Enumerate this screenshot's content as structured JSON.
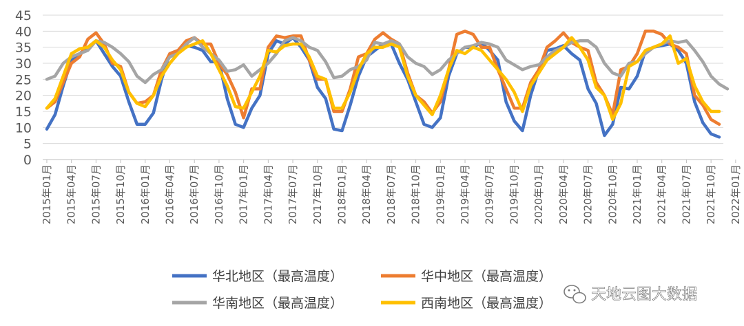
{
  "chart_data": {
    "type": "line",
    "title": "",
    "xlabel": "",
    "ylabel": "",
    "ylim": [
      0,
      45
    ],
    "yticks": [
      "0",
      "5",
      "10",
      "15",
      "20",
      "25",
      "30",
      "35",
      "40",
      "45"
    ],
    "grid": "horizontal",
    "legend_position": "bottom",
    "x_tick_labels": [
      "2015年01月",
      "2015年04月",
      "2015年07月",
      "2015年10月",
      "2016年01月",
      "2016年04月",
      "2016年07月",
      "2016年10月",
      "2017年01月",
      "2017年04月",
      "2017年07月",
      "2017年10月",
      "2018年01月",
      "2018年04月",
      "2018年07月",
      "2018年10月",
      "2019年01月",
      "2019年04月",
      "2019年07月",
      "2019年10月",
      "2020年01月",
      "2020年04月",
      "2020年07月",
      "2020年10月",
      "2021年01月",
      "2021年04月",
      "2021年07月",
      "2021年10月",
      "2022年01月"
    ],
    "x_start": "2015-01",
    "x_end": "2022-03",
    "x_tick_interval_months": 3,
    "series": [
      {
        "name": "华北地区（最高温度）",
        "color": "#4472C4",
        "values": [
          9.5,
          14,
          23,
          31,
          33,
          35,
          37,
          33,
          29,
          26,
          18,
          11,
          11,
          14.5,
          25,
          33,
          34,
          35.5,
          35,
          34,
          30.5,
          30.5,
          19,
          11,
          10,
          16,
          20,
          33,
          37,
          36,
          38,
          35,
          31,
          22.5,
          19,
          9.5,
          9,
          17,
          26,
          32,
          34,
          36,
          36,
          30,
          25,
          18,
          11,
          10,
          13,
          26,
          33,
          35,
          35,
          36.5,
          34,
          31,
          18,
          12,
          9,
          20,
          28,
          34,
          34.5,
          35.5,
          33,
          31,
          22,
          17.5,
          7.5,
          11,
          22.5,
          22,
          26,
          34,
          35,
          35.5,
          36,
          34,
          30,
          18,
          11.5,
          8,
          7
        ]
      },
      {
        "name": "华中地区（最高温度）",
        "color": "#ED7D31",
        "values": [
          16,
          18,
          24,
          30,
          32,
          37.5,
          39.5,
          36,
          30,
          29,
          21,
          17.5,
          18,
          20,
          28,
          33,
          34,
          37,
          38,
          36,
          36,
          30,
          26.5,
          21,
          13,
          22,
          22,
          35,
          38.5,
          38,
          38.5,
          38.5,
          31,
          25,
          25,
          15,
          15,
          22,
          32,
          33,
          37.5,
          39.5,
          37.5,
          36,
          27,
          20,
          18,
          14.5,
          18,
          28,
          39,
          40,
          39,
          35,
          35,
          28,
          22,
          16,
          16,
          24,
          28,
          35,
          37,
          39.5,
          36.5,
          35,
          34,
          24,
          20,
          14,
          28,
          29,
          33,
          40,
          40,
          39,
          36,
          35,
          33,
          20,
          17,
          12.5,
          11
        ]
      },
      {
        "name": "华南地区（最高温度）",
        "color": "#A5A5A5",
        "values": [
          25,
          26,
          30,
          32,
          33,
          34,
          37,
          36.5,
          35,
          33,
          30.5,
          26,
          24,
          26.5,
          28,
          32,
          33,
          36,
          38,
          35,
          33,
          31,
          27.5,
          28,
          29.5,
          26,
          28,
          30,
          33,
          37,
          38,
          37,
          35,
          34,
          30.5,
          25.5,
          26,
          28,
          29,
          31,
          36.5,
          36,
          37,
          36,
          32,
          30,
          29,
          26.5,
          28,
          31,
          33,
          35,
          35.5,
          36.5,
          36,
          35,
          31,
          29.5,
          28,
          29,
          29.5,
          32,
          34,
          35,
          36.5,
          37,
          37,
          35,
          30,
          27,
          26,
          30,
          30.5,
          33,
          35,
          36,
          37,
          36.5,
          37,
          34,
          30.5,
          26,
          23.5,
          22
        ]
      },
      {
        "name": "西南地区（最高温度）",
        "color": "#FFC000",
        "values": [
          16,
          19,
          26,
          33,
          34.5,
          35,
          37,
          35,
          31,
          28,
          21,
          17.5,
          16.5,
          20,
          26,
          30,
          33,
          35,
          36,
          37,
          33,
          28,
          23,
          16.5,
          16,
          21,
          26,
          34,
          33.5,
          35.5,
          36,
          36,
          32,
          26,
          25,
          16,
          16,
          21,
          28,
          33,
          35,
          35,
          36,
          35,
          26,
          20,
          17,
          14,
          20,
          28,
          34,
          33,
          35,
          34,
          31,
          28,
          25,
          21,
          15,
          23,
          27,
          31,
          33,
          35,
          38,
          35,
          31,
          22.5,
          20,
          12.5,
          17.5,
          29,
          30.5,
          34,
          35,
          36,
          38.5,
          30,
          31.5,
          23,
          18,
          15,
          15
        ]
      }
    ]
  },
  "watermark": {
    "icon": "wechat-icon",
    "text": "天地云图大数据"
  }
}
